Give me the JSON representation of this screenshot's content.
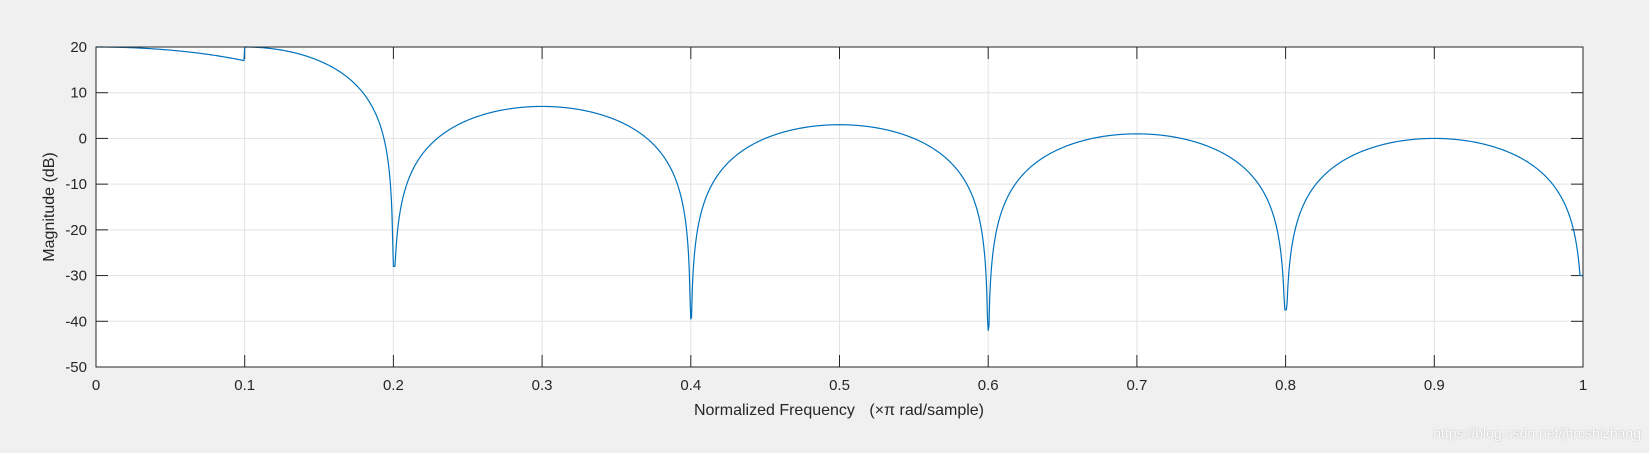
{
  "chart_data": {
    "type": "line",
    "xlabel_prefix": "Normalized Frequency",
    "xlabel_symbol": "(×π rad/sample)",
    "ylabel": "Magnitude (dB)",
    "xlim": [
      0,
      1
    ],
    "ylim": [
      -50,
      20
    ],
    "grid": true,
    "legend": "none",
    "line_color": "#0072bd",
    "x_ticks": [
      0,
      0.1,
      0.2,
      0.3,
      0.4,
      0.5,
      0.6,
      0.7,
      0.8,
      0.9,
      1
    ],
    "x_tick_labels": [
      "0",
      "0.1",
      "0.2",
      "0.3",
      "0.4",
      "0.5",
      "0.6",
      "0.7",
      "0.8",
      "0.9",
      "1"
    ],
    "y_ticks": [
      20,
      10,
      0,
      -10,
      -20,
      -30,
      -40,
      -50
    ],
    "y_tick_labels": [
      "20",
      "10",
      "0",
      "-10",
      "-20",
      "-30",
      "-40",
      "-50"
    ],
    "series": [
      {
        "notches": [
          {
            "x": 0.2,
            "y": -28
          },
          {
            "x": 0.4,
            "y": -39.5
          },
          {
            "x": 0.6,
            "y": -42
          },
          {
            "x": 0.8,
            "y": -37.5
          },
          {
            "x": 1.0,
            "y": -30
          }
        ],
        "lobe_peaks": [
          {
            "x": 0.0,
            "y": 20
          },
          {
            "x": 0.29,
            "y": 7
          },
          {
            "x": 0.495,
            "y": 3
          },
          {
            "x": 0.7,
            "y": 1
          },
          {
            "x": 0.9,
            "y": 0
          }
        ]
      }
    ]
  },
  "watermark": "https://blog.csdn.net/jhrcshizhang"
}
